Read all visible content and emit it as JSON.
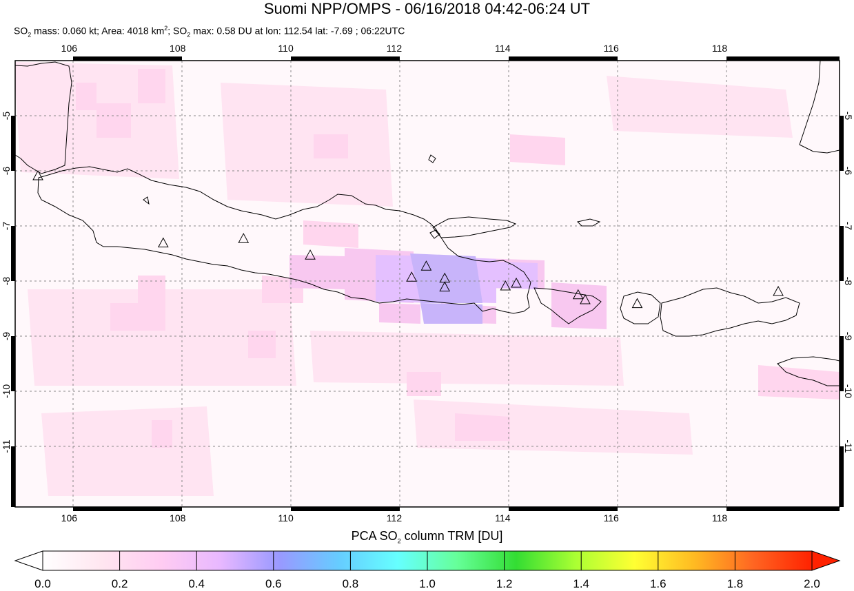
{
  "header": {
    "title": "Suomi NPP/OMPS - 06/16/2018 04:42-06:24 UT",
    "subtitle": {
      "so2_prefix": "SO",
      "so2_sub": "2",
      "mass_text": " mass: 0.060 kt; Area: 4018 km",
      "area_sup": "2",
      "sep": "; SO",
      "so2_sub_2": "2",
      "max_text": " max: 0.58 DU at lon: 112.54 lat: -7.69 ; 06:22UTC"
    }
  },
  "map": {
    "lon_range": [
      105,
      120.2
    ],
    "lat_range": [
      -12.1,
      -4
    ],
    "x_ticks": [
      "106",
      "108",
      "110",
      "112",
      "114",
      "116",
      "118"
    ],
    "y_ticks": [
      "-5",
      "-6",
      "-7",
      "-8",
      "-9",
      "-10",
      "-11"
    ],
    "volcano_marker": "triangle-outline",
    "volcanoes": [
      {
        "lon": 105.42,
        "lat": -6.1
      },
      {
        "lon": 107.73,
        "lat": -7.32
      },
      {
        "lon": 109.21,
        "lat": -7.24
      },
      {
        "lon": 110.44,
        "lat": -7.54
      },
      {
        "lon": 112.31,
        "lat": -7.94
      },
      {
        "lon": 112.58,
        "lat": -7.74
      },
      {
        "lon": 112.92,
        "lat": -7.96
      },
      {
        "lon": 112.92,
        "lat": -8.12
      },
      {
        "lon": 114.04,
        "lat": -8.1
      },
      {
        "lon": 114.24,
        "lat": -8.05
      },
      {
        "lon": 115.38,
        "lat": -8.26
      },
      {
        "lon": 115.51,
        "lat": -8.35
      },
      {
        "lon": 116.47,
        "lat": -8.42
      },
      {
        "lon": 119.07,
        "lat": -8.2
      }
    ]
  },
  "colorbar": {
    "label_prefix": "PCA SO",
    "label_sub": "2",
    "label_suffix": " column TRM [DU]",
    "ticks": [
      "0.0",
      "0.2",
      "0.4",
      "0.6",
      "0.8",
      "1.0",
      "1.2",
      "1.4",
      "1.6",
      "1.8",
      "2.0"
    ],
    "colors": [
      "#ffffff",
      "#ffe6f0",
      "#ffccf2",
      "#e8b8ff",
      "#9999ff",
      "#66ccff",
      "#66ffff",
      "#66ff99",
      "#33dd33",
      "#aaff33",
      "#ffff33",
      "#ffbb22",
      "#ff6622",
      "#ff2200"
    ]
  }
}
